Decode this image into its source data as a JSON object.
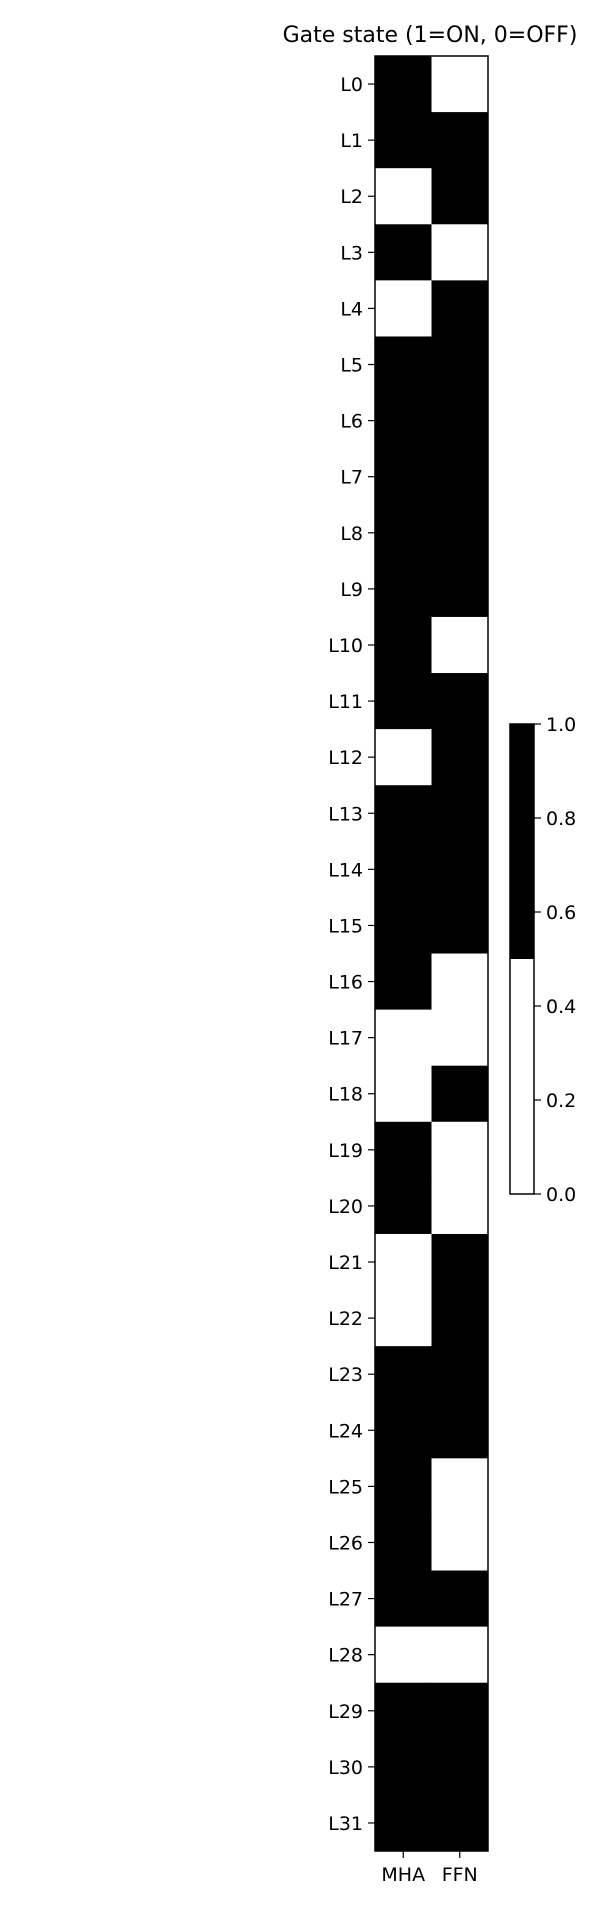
{
  "chart_data": {
    "type": "heatmap",
    "title": "Gate state (1=ON, 0=OFF)",
    "xlabel": "",
    "ylabel": "",
    "columns": [
      "MHA",
      "FFN"
    ],
    "rows": [
      "L0",
      "L1",
      "L2",
      "L3",
      "L4",
      "L5",
      "L6",
      "L7",
      "L8",
      "L9",
      "L10",
      "L11",
      "L12",
      "L13",
      "L14",
      "L15",
      "L16",
      "L17",
      "L18",
      "L19",
      "L20",
      "L21",
      "L22",
      "L23",
      "L24",
      "L25",
      "L26",
      "L27",
      "L28",
      "L29",
      "L30",
      "L31"
    ],
    "values": [
      [
        1,
        0
      ],
      [
        1,
        1
      ],
      [
        0,
        1
      ],
      [
        1,
        0
      ],
      [
        0,
        1
      ],
      [
        1,
        1
      ],
      [
        1,
        1
      ],
      [
        1,
        1
      ],
      [
        1,
        1
      ],
      [
        1,
        1
      ],
      [
        1,
        0
      ],
      [
        1,
        1
      ],
      [
        0,
        1
      ],
      [
        1,
        1
      ],
      [
        1,
        1
      ],
      [
        1,
        1
      ],
      [
        1,
        0
      ],
      [
        0,
        0
      ],
      [
        0,
        1
      ],
      [
        1,
        0
      ],
      [
        1,
        0
      ],
      [
        0,
        1
      ],
      [
        0,
        1
      ],
      [
        1,
        1
      ],
      [
        1,
        1
      ],
      [
        1,
        0
      ],
      [
        1,
        0
      ],
      [
        1,
        1
      ],
      [
        0,
        0
      ],
      [
        1,
        1
      ],
      [
        1,
        1
      ],
      [
        1,
        1
      ]
    ],
    "colormap": {
      "0": "#ffffff",
      "1": "#000000"
    },
    "colorbar": {
      "ticks": [
        "0.0",
        "0.2",
        "0.4",
        "0.6",
        "0.8",
        "1.0"
      ],
      "range": [
        0,
        1
      ]
    },
    "grid": false
  }
}
